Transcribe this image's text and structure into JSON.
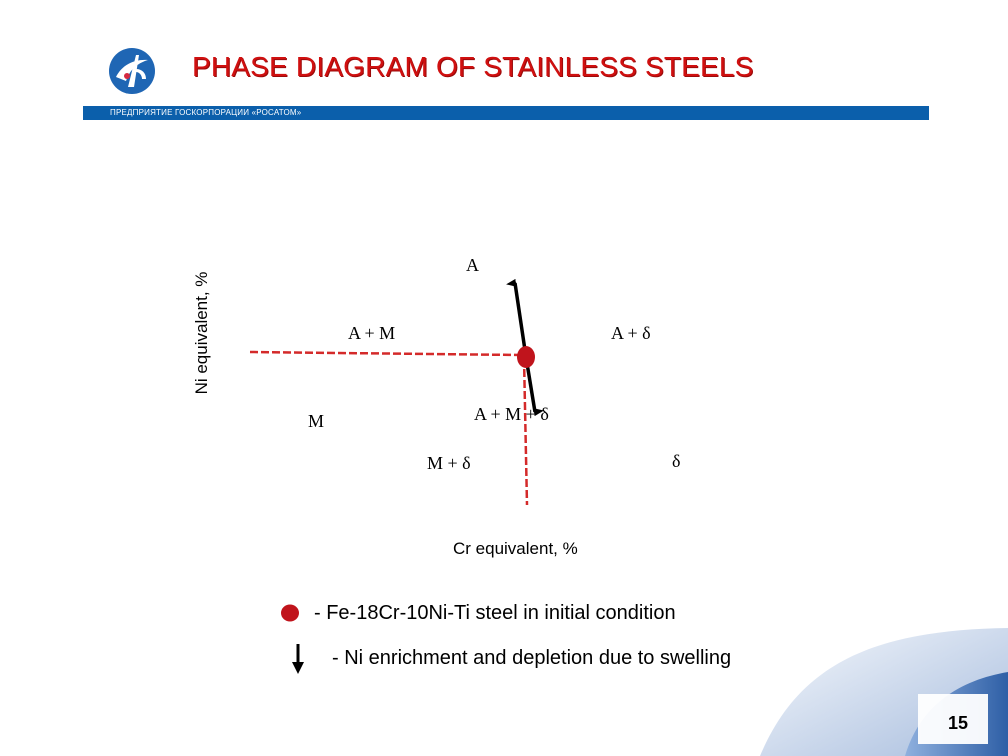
{
  "header": {
    "title": "PHASE DIAGRAM OF STAINLESS STEELS",
    "subtitle": "ПРЕДПРИЯТИЕ ГОСКОРПОРАЦИИ «РОСАТОМ»",
    "brand_color": "#0b5fab",
    "title_color": "#d01010",
    "logo_icon": "rosatom-logo-icon"
  },
  "axes": {
    "ylabel": "Ni equivalent, %",
    "xlabel": "Cr equivalent, %"
  },
  "regions": {
    "A": "A",
    "A_M": "A + M",
    "A_delta": "A + δ",
    "M": "M",
    "A_M_delta": "A + M + δ",
    "M_delta": "M + δ",
    "delta": "δ"
  },
  "legend": {
    "steel_marker_icon": "red-dot-icon",
    "steel_label": "- Fe-18Cr-10Ni-Ti steel in initial condition",
    "arrow_icon": "down-arrow-icon",
    "arrow_label": "- Ni enrichment and depletion due to swelling",
    "marker_color": "#c0141c",
    "boundary_color": "#d42a2a"
  },
  "page_number": "15"
}
